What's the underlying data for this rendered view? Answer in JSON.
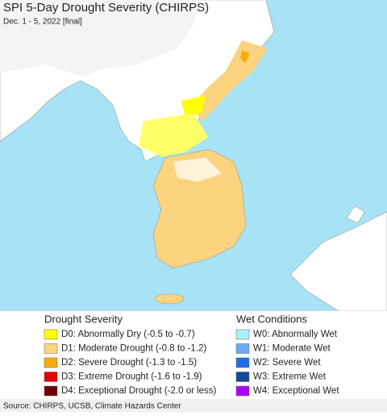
{
  "header": {
    "title": "SPI 5-Day Drought Severity (CHIRPS)",
    "subtitle": "Dec. 1 - 5, 2022 [final]"
  },
  "legend": {
    "drought": {
      "title": "Drought Severity",
      "items": [
        {
          "label": "D0: Abnormally Dry (-0.5 to -0.7)",
          "color": "#ffff00"
        },
        {
          "label": "D1: Moderate Drought (-0.8 to -1.2)",
          "color": "#fcd37f"
        },
        {
          "label": "D2: Severe Drought (-1.3 to -1.5)",
          "color": "#ffaa00"
        },
        {
          "label": "D3: Extreme Drought (-1.6 to -1.9)",
          "color": "#e60000"
        },
        {
          "label": "D4: Exceptional Drought (-2.0 or less)",
          "color": "#730000"
        }
      ]
    },
    "wet": {
      "title": "Wet Conditions",
      "items": [
        {
          "label": "W0: Abnormally Wet",
          "color": "#aaf0ff"
        },
        {
          "label": "W1: Moderate Wet",
          "color": "#6ea8f0"
        },
        {
          "label": "W2: Severe Wet",
          "color": "#1e6ee6"
        },
        {
          "label": "W3: Extreme Wet",
          "color": "#1446a0"
        },
        {
          "label": "W4: Exceptional Wet",
          "color": "#aa00ff"
        }
      ]
    }
  },
  "footer": {
    "source": "Source: CHIRPS, UCSB, Climate Hazards Center"
  }
}
